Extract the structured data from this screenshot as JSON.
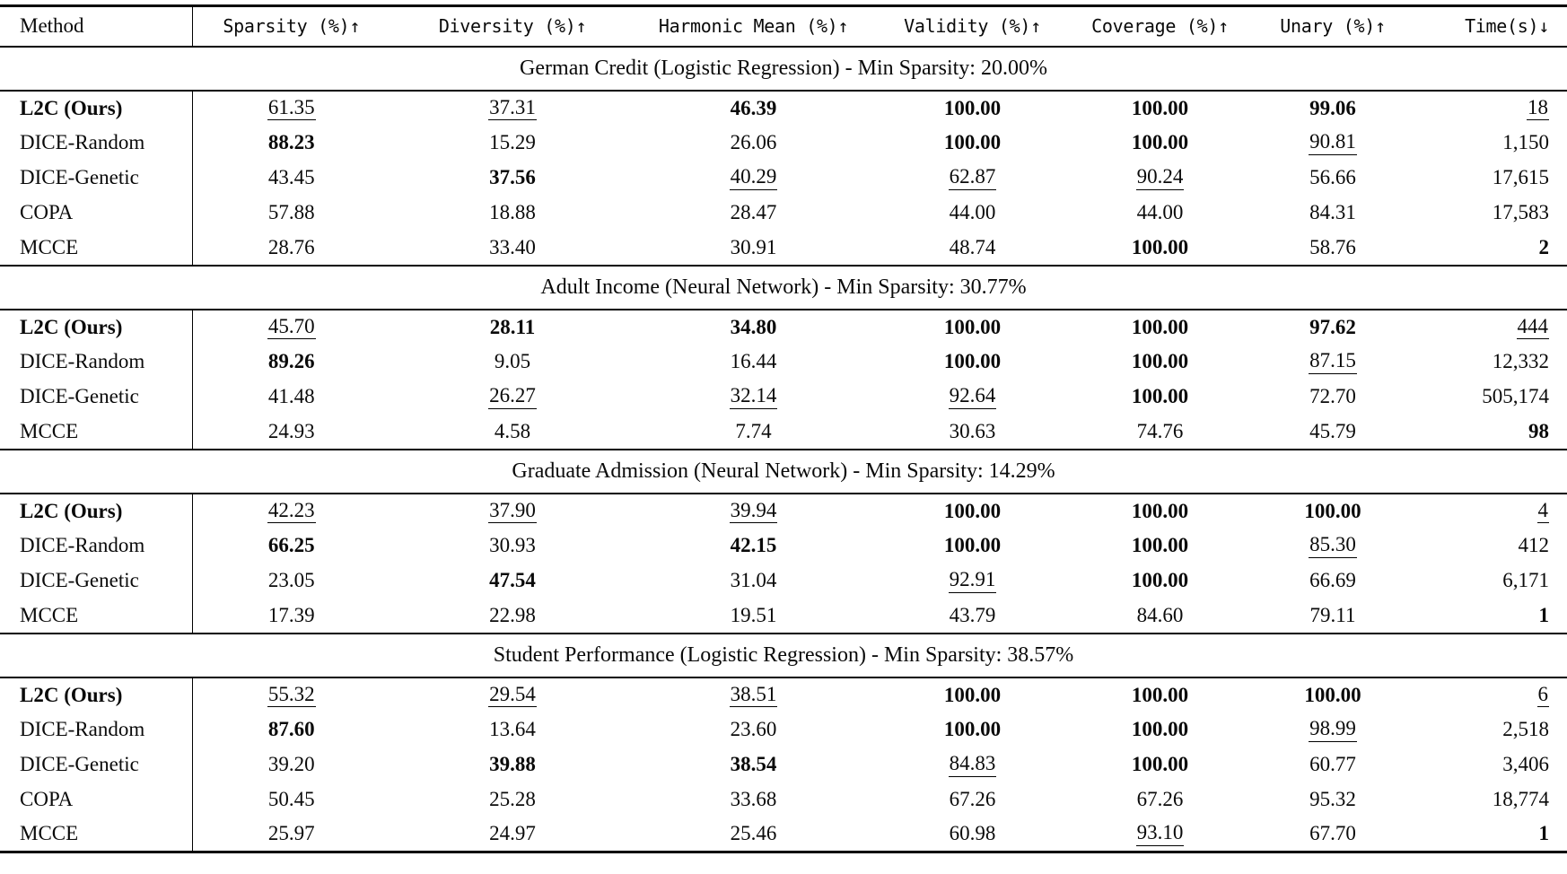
{
  "table": {
    "columns": [
      {
        "key": "method",
        "label": "Method"
      },
      {
        "key": "sparsity",
        "label": "Sparsity (%)↑"
      },
      {
        "key": "diversity",
        "label": "Diversity (%)↑"
      },
      {
        "key": "harmonic_mean",
        "label": "Harmonic Mean (%)↑"
      },
      {
        "key": "validity",
        "label": "Validity (%)↑"
      },
      {
        "key": "coverage",
        "label": "Coverage (%)↑"
      },
      {
        "key": "unary",
        "label": "Unary (%)↑"
      },
      {
        "key": "time",
        "label": "Time(s)↓"
      }
    ],
    "sections": [
      {
        "title": "German Credit (Logistic Regression) - Min Sparsity: 20.00%",
        "rows": [
          {
            "method": "L2C (Ours)",
            "method_bold": true,
            "cells": [
              {
                "v": "61.35",
                "u": true
              },
              {
                "v": "37.31",
                "u": true
              },
              {
                "v": "46.39",
                "b": true
              },
              {
                "v": "100.00",
                "b": true
              },
              {
                "v": "100.00",
                "b": true
              },
              {
                "v": "99.06",
                "b": true
              },
              {
                "v": "18",
                "u": true
              }
            ]
          },
          {
            "method": "DICE-Random",
            "cells": [
              {
                "v": "88.23",
                "b": true
              },
              {
                "v": "15.29"
              },
              {
                "v": "26.06"
              },
              {
                "v": "100.00",
                "b": true
              },
              {
                "v": "100.00",
                "b": true
              },
              {
                "v": "90.81",
                "u": true
              },
              {
                "v": "1,150"
              }
            ]
          },
          {
            "method": "DICE-Genetic",
            "cells": [
              {
                "v": "43.45"
              },
              {
                "v": "37.56",
                "b": true
              },
              {
                "v": "40.29",
                "u": true
              },
              {
                "v": "62.87",
                "u": true
              },
              {
                "v": "90.24",
                "u": true
              },
              {
                "v": "56.66"
              },
              {
                "v": "17,615"
              }
            ]
          },
          {
            "method": "COPA",
            "cells": [
              {
                "v": "57.88"
              },
              {
                "v": "18.88"
              },
              {
                "v": "28.47"
              },
              {
                "v": "44.00"
              },
              {
                "v": "44.00"
              },
              {
                "v": "84.31"
              },
              {
                "v": "17,583"
              }
            ]
          },
          {
            "method": "MCCE",
            "cells": [
              {
                "v": "28.76"
              },
              {
                "v": "33.40"
              },
              {
                "v": "30.91"
              },
              {
                "v": "48.74"
              },
              {
                "v": "100.00",
                "b": true
              },
              {
                "v": "58.76"
              },
              {
                "v": "2",
                "b": true
              }
            ]
          }
        ]
      },
      {
        "title": "Adult Income (Neural Network) - Min Sparsity: 30.77%",
        "rows": [
          {
            "method": "L2C (Ours)",
            "method_bold": true,
            "cells": [
              {
                "v": "45.70",
                "u": true
              },
              {
                "v": "28.11",
                "b": true
              },
              {
                "v": "34.80",
                "b": true
              },
              {
                "v": "100.00",
                "b": true
              },
              {
                "v": "100.00",
                "b": true
              },
              {
                "v": "97.62",
                "b": true
              },
              {
                "v": "444",
                "u": true
              }
            ]
          },
          {
            "method": "DICE-Random",
            "cells": [
              {
                "v": "89.26",
                "b": true
              },
              {
                "v": "9.05"
              },
              {
                "v": "16.44"
              },
              {
                "v": "100.00",
                "b": true
              },
              {
                "v": "100.00",
                "b": true
              },
              {
                "v": "87.15",
                "u": true
              },
              {
                "v": "12,332"
              }
            ]
          },
          {
            "method": "DICE-Genetic",
            "cells": [
              {
                "v": "41.48"
              },
              {
                "v": "26.27",
                "u": true
              },
              {
                "v": "32.14",
                "u": true
              },
              {
                "v": "92.64",
                "u": true
              },
              {
                "v": "100.00",
                "b": true
              },
              {
                "v": "72.70"
              },
              {
                "v": "505,174"
              }
            ]
          },
          {
            "method": "MCCE",
            "cells": [
              {
                "v": "24.93"
              },
              {
                "v": "4.58"
              },
              {
                "v": "7.74"
              },
              {
                "v": "30.63"
              },
              {
                "v": "74.76"
              },
              {
                "v": "45.79"
              },
              {
                "v": "98",
                "b": true
              }
            ]
          }
        ]
      },
      {
        "title": "Graduate Admission (Neural Network) - Min Sparsity: 14.29%",
        "rows": [
          {
            "method": "L2C (Ours)",
            "method_bold": true,
            "cells": [
              {
                "v": "42.23",
                "u": true
              },
              {
                "v": "37.90",
                "u": true
              },
              {
                "v": "39.94",
                "u": true
              },
              {
                "v": "100.00",
                "b": true
              },
              {
                "v": "100.00",
                "b": true
              },
              {
                "v": "100.00",
                "b": true
              },
              {
                "v": "4",
                "u": true
              }
            ]
          },
          {
            "method": "DICE-Random",
            "cells": [
              {
                "v": "66.25",
                "b": true
              },
              {
                "v": "30.93"
              },
              {
                "v": "42.15",
                "b": true
              },
              {
                "v": "100.00",
                "b": true
              },
              {
                "v": "100.00",
                "b": true
              },
              {
                "v": "85.30",
                "u": true
              },
              {
                "v": "412"
              }
            ]
          },
          {
            "method": "DICE-Genetic",
            "cells": [
              {
                "v": "23.05"
              },
              {
                "v": "47.54",
                "b": true
              },
              {
                "v": "31.04"
              },
              {
                "v": "92.91",
                "u": true
              },
              {
                "v": "100.00",
                "b": true
              },
              {
                "v": "66.69"
              },
              {
                "v": "6,171"
              }
            ]
          },
          {
            "method": "MCCE",
            "cells": [
              {
                "v": "17.39"
              },
              {
                "v": "22.98"
              },
              {
                "v": "19.51"
              },
              {
                "v": "43.79"
              },
              {
                "v": "84.60"
              },
              {
                "v": "79.11"
              },
              {
                "v": "1",
                "b": true
              }
            ]
          }
        ]
      },
      {
        "title": "Student Performance (Logistic Regression) - Min Sparsity: 38.57%",
        "rows": [
          {
            "method": "L2C (Ours)",
            "method_bold": true,
            "cells": [
              {
                "v": "55.32",
                "u": true
              },
              {
                "v": "29.54",
                "u": true
              },
              {
                "v": "38.51",
                "u": true
              },
              {
                "v": "100.00",
                "b": true
              },
              {
                "v": "100.00",
                "b": true
              },
              {
                "v": "100.00",
                "b": true
              },
              {
                "v": "6",
                "u": true
              }
            ]
          },
          {
            "method": "DICE-Random",
            "cells": [
              {
                "v": "87.60",
                "b": true
              },
              {
                "v": "13.64"
              },
              {
                "v": "23.60"
              },
              {
                "v": "100.00",
                "b": true
              },
              {
                "v": "100.00",
                "b": true
              },
              {
                "v": "98.99",
                "u": true
              },
              {
                "v": "2,518"
              }
            ]
          },
          {
            "method": "DICE-Genetic",
            "cells": [
              {
                "v": "39.20"
              },
              {
                "v": "39.88",
                "b": true
              },
              {
                "v": "38.54",
                "b": true
              },
              {
                "v": "84.83",
                "u": true
              },
              {
                "v": "100.00",
                "b": true
              },
              {
                "v": "60.77"
              },
              {
                "v": "3,406"
              }
            ]
          },
          {
            "method": "COPA",
            "cells": [
              {
                "v": "50.45"
              },
              {
                "v": "25.28"
              },
              {
                "v": "33.68"
              },
              {
                "v": "67.26"
              },
              {
                "v": "67.26"
              },
              {
                "v": "95.32"
              },
              {
                "v": "18,774"
              }
            ]
          },
          {
            "method": "MCCE",
            "cells": [
              {
                "v": "25.97"
              },
              {
                "v": "24.97"
              },
              {
                "v": "25.46"
              },
              {
                "v": "60.98"
              },
              {
                "v": "93.10",
                "u": true
              },
              {
                "v": "67.70"
              },
              {
                "v": "1",
                "b": true
              }
            ]
          }
        ]
      }
    ]
  }
}
